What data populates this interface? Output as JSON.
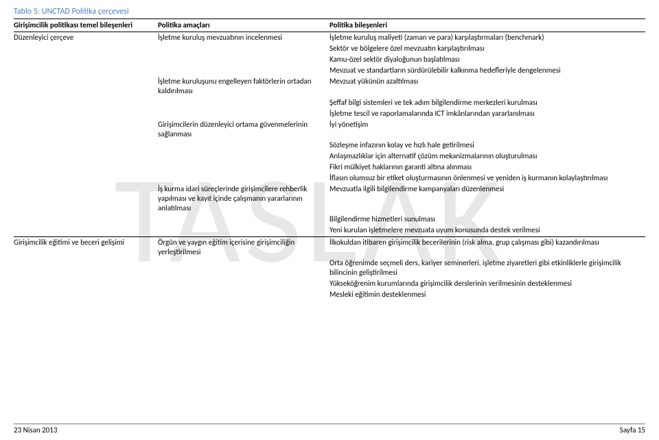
{
  "caption": "Tablo 5: UNCTAD Politika çerçevesi",
  "headers": {
    "c1": "Girişimcilik politikası temel bileşenleri",
    "c2": "Politika amaçları",
    "c3": "Politika bileşenleri"
  },
  "rows": [
    {
      "c1": "Düzenleyici çerçeve",
      "c2": "İşletme kuruluş mevzuatının incelenmesi",
      "c3": "İşletme kuruluş maliyeti (zaman ve para) karşılaştırmaları (benchmark)"
    },
    {
      "c1": "",
      "c2": "",
      "c3": "Sektör ve bölgelere özel mevzuatın karşılaştırılması"
    },
    {
      "c1": "",
      "c2": "",
      "c3": "Kamu-özel sektör diyaloğunun başlatılması"
    },
    {
      "c1": "",
      "c2": "",
      "c3": "Mevzuat ve standartların sürdürülebilir kalkınma hedefleriyle dengelenmesi"
    },
    {
      "c1": "",
      "c2": "İşletme kuruluşunu engelleyen faktörlerin ortadan kaldırılması",
      "c3": "Mevzuat yükünün azaltılması"
    },
    {
      "c1": "",
      "c2": "",
      "c3": "Şeffaf bilgi sistemleri ve tek adım bilgilendirme merkezleri kurulması"
    },
    {
      "c1": "",
      "c2": "",
      "c3": "İşletme tescil ve raporlamalarında ICT imkânlarından yararlanılması"
    },
    {
      "c1": "",
      "c2": "Girişimcilerin düzenleyici ortama güvenmelerinin sağlanması",
      "c3": "İyi yönetişim"
    },
    {
      "c1": "",
      "c2": "",
      "c3": "Sözleşme infazının kolay ve hızlı hale getirilmesi"
    },
    {
      "c1": "",
      "c2": "",
      "c3": "Anlaşmazlıklar için alternatif çözüm mekanizmalarının oluşturulması"
    },
    {
      "c1": "",
      "c2": "",
      "c3": "Fikri mülkiyet haklarının garanti altına alınması"
    },
    {
      "c1": "",
      "c2": "",
      "c3": "İflasın olumsuz bir etiket oluşturmasının önlenmesi ve yeniden iş kurmanın kolaylaştırılması"
    },
    {
      "c1": "",
      "c2": "İş kurma idari süreçlerinde girişimcilere rehberlik yapılması ve kayıt içinde çalışmanın yararlarının anlatılması",
      "c3": "Mevzuatla ilgili bilgilendirme kampanyaları düzenlenmesi"
    },
    {
      "c1": "",
      "c2": "",
      "c3": "Bilgilendirme hizmetleri sunulması"
    },
    {
      "c1": "",
      "c2": "",
      "c3": "Yeni kurulan işletmelere mevzuata uyum konusunda destek verilmesi",
      "sep": true
    },
    {
      "c1": "Girişimcilik eğitimi ve beceri gelişimi",
      "c2": "Örgün ve yaygın eğitim içerisine girişimciliğin yerleştirilmesi",
      "c3": "İlkokuldan itibaren girişimcilik becerilerinin (risk alma, grup çalışması gibi) kazandırılması"
    },
    {
      "c1": "",
      "c2": "",
      "c3": "Orta öğrenimde seçmeli ders, kariyer seminerleri, işletme ziyaretleri gibi etkinliklerle girişimcilik bilincinin geliştirilmesi"
    },
    {
      "c1": "",
      "c2": "",
      "c3": "Yükseköğrenim kurumlarında girişimcilik derslerinin verilmesinin desteklenmesi"
    },
    {
      "c1": "",
      "c2": "",
      "c3": "Mesleki eğitimin desteklenmesi"
    }
  ],
  "footer": {
    "left": "23 Nisan 2013",
    "right": "Sayfa 15"
  },
  "watermark": "TASLAK"
}
